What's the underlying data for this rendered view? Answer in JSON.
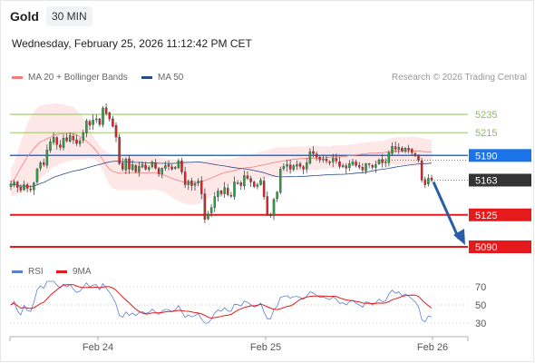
{
  "header": {
    "instrument": "Gold",
    "timeframe": "30 MIN"
  },
  "timestamp": "Wednesday, February 25, 2026 11:12:42 PM CET",
  "legend": [
    {
      "label": "MA 20 + Bollinger Bands",
      "color": "#f47c7c"
    },
    {
      "label": "MA 50",
      "color": "#2b4a8b"
    }
  ],
  "credit": "Research © 2026 Trading Central",
  "rsi_legend": [
    {
      "label": "RSI",
      "color": "#5b7fd1"
    },
    {
      "label": "9MA",
      "color": "#e41a1c"
    }
  ],
  "chart_data": [
    {
      "type": "candlestick",
      "name": "price",
      "x_ticks": [
        "Feb 24",
        "Feb 25",
        "Feb 26"
      ],
      "levels": [
        {
          "value": 5235,
          "label": "5235",
          "kind": "target",
          "color": "#8bc34a"
        },
        {
          "value": 5215,
          "label": "5215",
          "kind": "target",
          "color": "#8bc34a"
        },
        {
          "value": 5190,
          "label": "5190",
          "kind": "pivot",
          "color": "#1a73e8"
        },
        {
          "value": 5163,
          "label": "5163",
          "kind": "last",
          "color": "#333333"
        },
        {
          "value": 5125,
          "label": "5125",
          "kind": "support",
          "color": "#e41a1c"
        },
        {
          "value": 5090,
          "label": "5090",
          "kind": "support",
          "color": "#e41a1c"
        }
      ],
      "close": [
        5159,
        5161,
        5155,
        5152,
        5158,
        5154,
        5153,
        5160,
        5175,
        5182,
        5180,
        5196,
        5205,
        5210,
        5202,
        5199,
        5209,
        5206,
        5212,
        5207,
        5203,
        5206,
        5215,
        5228,
        5223,
        5229,
        5230,
        5224,
        5242,
        5236,
        5230,
        5222,
        5210,
        5181,
        5175,
        5186,
        5175,
        5180,
        5172,
        5178,
        5180,
        5175,
        5177,
        5183,
        5176,
        5170,
        5176,
        5179,
        5178,
        5175,
        5177,
        5184,
        5172,
        5158,
        5162,
        5157,
        5159,
        5162,
        5148,
        5120,
        5126,
        5133,
        5145,
        5151,
        5148,
        5155,
        5147,
        5146,
        5161,
        5160,
        5157,
        5168,
        5165,
        5161,
        5156,
        5158,
        5163,
        5145,
        5125,
        5125,
        5142,
        5150,
        5175,
        5178,
        5180,
        5175,
        5179,
        5180,
        5178,
        5175,
        5182,
        5194,
        5192,
        5188,
        5185,
        5186,
        5184,
        5182,
        5187,
        5184,
        5178,
        5179,
        5176,
        5181,
        5183,
        5179,
        5177,
        5174,
        5181,
        5180,
        5177,
        5180,
        5185,
        5182,
        5183,
        5193,
        5200,
        5197,
        5199,
        5195,
        5198,
        5196,
        5193,
        5190,
        5185,
        5163,
        5158,
        5165,
        5163
      ],
      "bollinger_upper": [
        5175,
        5182,
        5193,
        5205,
        5215,
        5225,
        5232,
        5238,
        5242,
        5245,
        5245,
        5246,
        5246,
        5247,
        5247,
        5246,
        5246,
        5245,
        5244,
        5243,
        5240,
        5236,
        5231,
        5225,
        5218,
        5212,
        5206,
        5201,
        5197,
        5194,
        5192,
        5191,
        5190,
        5189,
        5189,
        5190,
        5191,
        5190,
        5190,
        5190,
        5190,
        5190,
        5189,
        5189,
        5189,
        5188,
        5187,
        5187,
        5186,
        5186,
        5185,
        5185,
        5184,
        5184,
        5184,
        5183,
        5183,
        5183,
        5184,
        5184,
        5185,
        5185,
        5186,
        5186,
        5186,
        5186,
        5186,
        5186,
        5187,
        5188,
        5189,
        5190,
        5191,
        5191,
        5192,
        5193,
        5194,
        5195,
        5196,
        5197,
        5198,
        5199,
        5199,
        5199,
        5199,
        5199,
        5200,
        5200,
        5200,
        5200,
        5200,
        5200,
        5200,
        5200,
        5200,
        5200,
        5200,
        5200,
        5201,
        5201,
        5201,
        5201,
        5201,
        5202,
        5202,
        5203,
        5203,
        5204,
        5204,
        5205,
        5205,
        5205,
        5206,
        5206,
        5207,
        5208,
        5209,
        5210,
        5210,
        5210,
        5210,
        5210,
        5211,
        5210,
        5210,
        5209,
        5208,
        5208,
        5207
      ],
      "bollinger_lower": [
        5146,
        5146,
        5147,
        5148,
        5150,
        5152,
        5154,
        5157,
        5161,
        5165,
        5168,
        5171,
        5174,
        5177,
        5179,
        5181,
        5182,
        5183,
        5184,
        5185,
        5185,
        5185,
        5186,
        5186,
        5187,
        5186,
        5184,
        5179,
        5173,
        5165,
        5158,
        5154,
        5153,
        5152,
        5152,
        5152,
        5152,
        5152,
        5152,
        5152,
        5152,
        5152,
        5152,
        5153,
        5153,
        5152,
        5151,
        5149,
        5147,
        5144,
        5142,
        5140,
        5139,
        5137,
        5137,
        5136,
        5136,
        5137,
        5139,
        5141,
        5143,
        5146,
        5148,
        5151,
        5154,
        5156,
        5158,
        5159,
        5160,
        5161,
        5162,
        5162,
        5163,
        5163,
        5163,
        5164,
        5164,
        5165,
        5165,
        5166,
        5166,
        5167,
        5168,
        5169,
        5170,
        5171,
        5172,
        5172,
        5173,
        5173,
        5174,
        5174,
        5174,
        5174,
        5175,
        5175,
        5175,
        5176,
        5176,
        5176,
        5176,
        5177,
        5177,
        5178,
        5178,
        5178,
        5179,
        5179,
        5179,
        5180,
        5180,
        5180,
        5180,
        5180,
        5180,
        5180,
        5180,
        5180,
        5180,
        5180,
        5180,
        5180,
        5180,
        5180,
        5180,
        5180,
        5180,
        5180,
        5180
      ]
    },
    {
      "type": "line",
      "name": "rsi",
      "x_ticks": [
        "Feb 24",
        "Feb 25",
        "Feb 26"
      ],
      "y_ticks": [
        70,
        50,
        30
      ],
      "ylim": [
        20,
        80
      ]
    }
  ]
}
